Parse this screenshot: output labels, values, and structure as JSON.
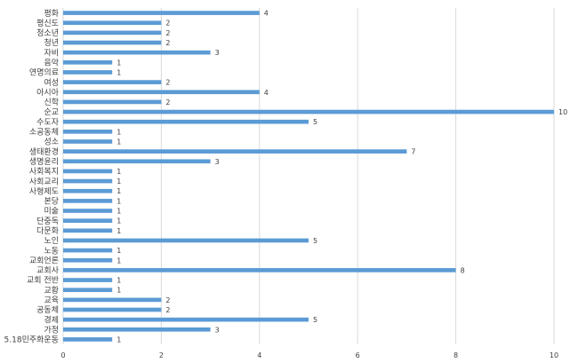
{
  "chart_data": {
    "type": "bar",
    "orientation": "horizontal",
    "title": "",
    "xlabel": "",
    "ylabel": "",
    "xlim": [
      0,
      10
    ],
    "x_ticks": [
      0,
      2,
      4,
      6,
      8,
      10
    ],
    "grid": true,
    "legend": "none",
    "bar_color": "#5b9bd5",
    "categories": [
      "평화",
      "평신도",
      "청소년",
      "청년",
      "자비",
      "음악",
      "연명의료",
      "여성",
      "아시아",
      "신학",
      "순교",
      "수도자",
      "소공동체",
      "성소",
      "생태환경",
      "생명윤리",
      "사회복지",
      "사회교리",
      "사형제도",
      "본당",
      "미술",
      "단중독",
      "다문화",
      "노인",
      "노동",
      "교회언론",
      "교회사",
      "교회 전반",
      "교황",
      "교육",
      "공동체",
      "경제",
      "가정",
      "5.18민주화운동"
    ],
    "values": [
      4,
      2,
      2,
      2,
      3,
      1,
      1,
      2,
      4,
      2,
      10,
      5,
      1,
      1,
      7,
      3,
      1,
      1,
      1,
      1,
      1,
      1,
      1,
      5,
      1,
      1,
      8,
      1,
      1,
      2,
      2,
      5,
      3,
      1
    ]
  }
}
